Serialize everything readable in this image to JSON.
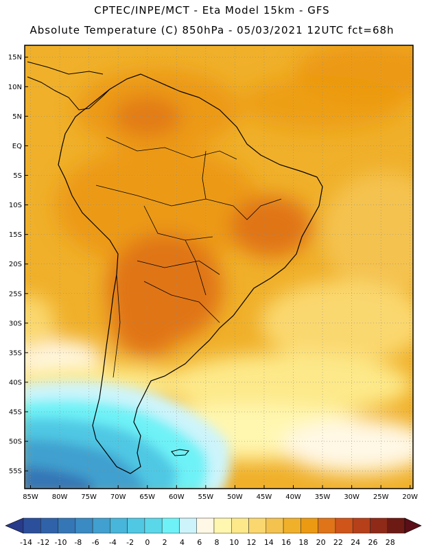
{
  "header": {
    "line1": "CPTEC/INPE/MCT -  Eta Model 15km - GFS",
    "line2": "Absolute Temperature (C) 850hPa - 05/03/2021 12UTC fct=68h"
  },
  "map": {
    "lat_labels": [
      "15N",
      "10N",
      "5N",
      "EQ",
      "5S",
      "10S",
      "15S",
      "20S",
      "25S",
      "30S",
      "35S",
      "40S",
      "45S",
      "50S",
      "55S"
    ],
    "lon_labels": [
      "85W",
      "80W",
      "75W",
      "70W",
      "65W",
      "60W",
      "55W",
      "50W",
      "45W",
      "40W",
      "35W",
      "30W",
      "25W",
      "20W"
    ],
    "lat_values": [
      15,
      10,
      5,
      0,
      -5,
      -10,
      -15,
      -20,
      -25,
      -30,
      -35,
      -40,
      -45,
      -50,
      -55
    ],
    "lon_values": [
      -85,
      -80,
      -75,
      -70,
      -65,
      -60,
      -55,
      -50,
      -45,
      -40,
      -35,
      -30,
      -25,
      -20
    ],
    "lon_range": [
      -86,
      -19.5
    ],
    "lat_range": [
      -58,
      17
    ]
  },
  "colorbar": {
    "labels": [
      "-14",
      "-12",
      "-10",
      "-8",
      "-6",
      "-4",
      "-2",
      "0",
      "2",
      "4",
      "6",
      "8",
      "10",
      "12",
      "14",
      "16",
      "18",
      "20",
      "22",
      "24",
      "26",
      "28"
    ],
    "colors": [
      "#2b4f9b",
      "#2f62a8",
      "#3576b6",
      "#3a8ac3",
      "#41a0cf",
      "#48b5da",
      "#50c8e4",
      "#5ad8ea",
      "#6ef2f7",
      "#cdf4fb",
      "#fff8e6",
      "#fff7b0",
      "#fde98a",
      "#fad86f",
      "#f4c24f",
      "#f0b02a",
      "#ec9a12",
      "#e07418",
      "#d0551a",
      "#b5401a",
      "#8f2a18",
      "#6e1a14"
    ],
    "end_low": "#283a8a",
    "end_high": "#5a0e18"
  },
  "palette": {
    "frame": "#000000",
    "grid": "#8c8c8c",
    "coast": "#000000"
  }
}
